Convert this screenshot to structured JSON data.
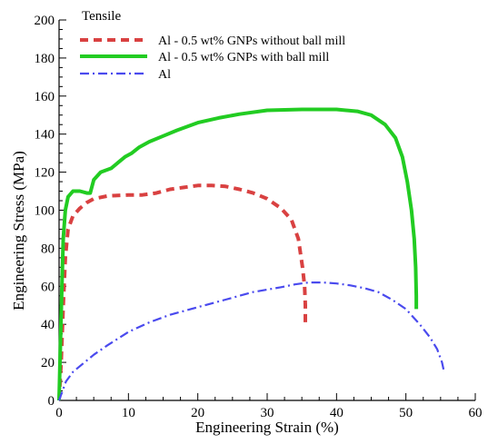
{
  "chart_data": {
    "type": "line",
    "title": "",
    "xlabel": "Engineering Strain (%)",
    "ylabel": "Engineering Stress (MPa)",
    "xlim": [
      0,
      60
    ],
    "ylim": [
      0,
      200
    ],
    "x_ticks": [
      0,
      10,
      20,
      30,
      40,
      50,
      60
    ],
    "y_ticks": [
      0,
      20,
      40,
      60,
      80,
      100,
      120,
      140,
      160,
      180,
      200
    ],
    "grid": false,
    "legend": {
      "title": "Tensile",
      "position": "top-left"
    },
    "series": [
      {
        "name": "Al - 0.5 wt% GNPs without ball mill",
        "color": "#d94141",
        "style": "dashed",
        "points": [
          [
            0,
            0
          ],
          [
            0.3,
            20
          ],
          [
            0.6,
            50
          ],
          [
            0.9,
            75
          ],
          [
            1.3,
            90
          ],
          [
            2,
            97
          ],
          [
            3,
            101
          ],
          [
            4,
            104
          ],
          [
            5,
            106
          ],
          [
            7,
            107.5
          ],
          [
            10,
            108
          ],
          [
            12,
            108
          ],
          [
            14,
            109
          ],
          [
            16,
            111
          ],
          [
            18,
            112
          ],
          [
            20,
            113
          ],
          [
            22,
            113
          ],
          [
            24,
            112.5
          ],
          [
            26,
            111
          ],
          [
            28,
            109
          ],
          [
            30,
            106
          ],
          [
            32,
            101
          ],
          [
            33.5,
            95
          ],
          [
            34.5,
            85
          ],
          [
            35.1,
            70
          ],
          [
            35.4,
            60
          ],
          [
            35.5,
            50
          ],
          [
            35.5,
            40
          ]
        ]
      },
      {
        "name": "Al - 0.5 wt% GNPs with ball mill",
        "color": "#22cc22",
        "style": "solid",
        "points": [
          [
            0,
            0
          ],
          [
            0.2,
            30
          ],
          [
            0.4,
            60
          ],
          [
            0.6,
            85
          ],
          [
            0.9,
            100
          ],
          [
            1.3,
            107
          ],
          [
            2,
            110
          ],
          [
            3,
            110
          ],
          [
            4,
            109
          ],
          [
            4.5,
            109
          ],
          [
            5,
            116
          ],
          [
            6,
            120
          ],
          [
            7.5,
            122
          ],
          [
            8.5,
            125
          ],
          [
            9.5,
            128
          ],
          [
            10.5,
            130
          ],
          [
            11.5,
            133
          ],
          [
            13,
            136
          ],
          [
            15,
            139
          ],
          [
            17,
            142
          ],
          [
            20,
            146
          ],
          [
            23,
            148.5
          ],
          [
            26,
            150.5
          ],
          [
            30,
            152.5
          ],
          [
            35,
            153
          ],
          [
            40,
            153
          ],
          [
            43,
            152
          ],
          [
            45,
            150
          ],
          [
            47,
            145
          ],
          [
            48.5,
            138
          ],
          [
            49.5,
            128
          ],
          [
            50.2,
            115
          ],
          [
            50.8,
            100
          ],
          [
            51.2,
            85
          ],
          [
            51.4,
            70
          ],
          [
            51.5,
            55
          ],
          [
            51.5,
            48
          ]
        ]
      },
      {
        "name": "Al",
        "color": "#4a4aee",
        "style": "dashdot",
        "points": [
          [
            0,
            0
          ],
          [
            0.5,
            5
          ],
          [
            1,
            10
          ],
          [
            2,
            15
          ],
          [
            3,
            18
          ],
          [
            5,
            24
          ],
          [
            7,
            29
          ],
          [
            10,
            36
          ],
          [
            13,
            41
          ],
          [
            16,
            45
          ],
          [
            20,
            49
          ],
          [
            24,
            53
          ],
          [
            28,
            57
          ],
          [
            32,
            59.5
          ],
          [
            34,
            61
          ],
          [
            36,
            62
          ],
          [
            38,
            62
          ],
          [
            40,
            61.5
          ],
          [
            42,
            60.5
          ],
          [
            44,
            59
          ],
          [
            46,
            57
          ],
          [
            48,
            53
          ],
          [
            50,
            48
          ],
          [
            52,
            40
          ],
          [
            53.5,
            33
          ],
          [
            54.5,
            27
          ],
          [
            55.2,
            20
          ],
          [
            55.5,
            15
          ]
        ]
      }
    ]
  }
}
